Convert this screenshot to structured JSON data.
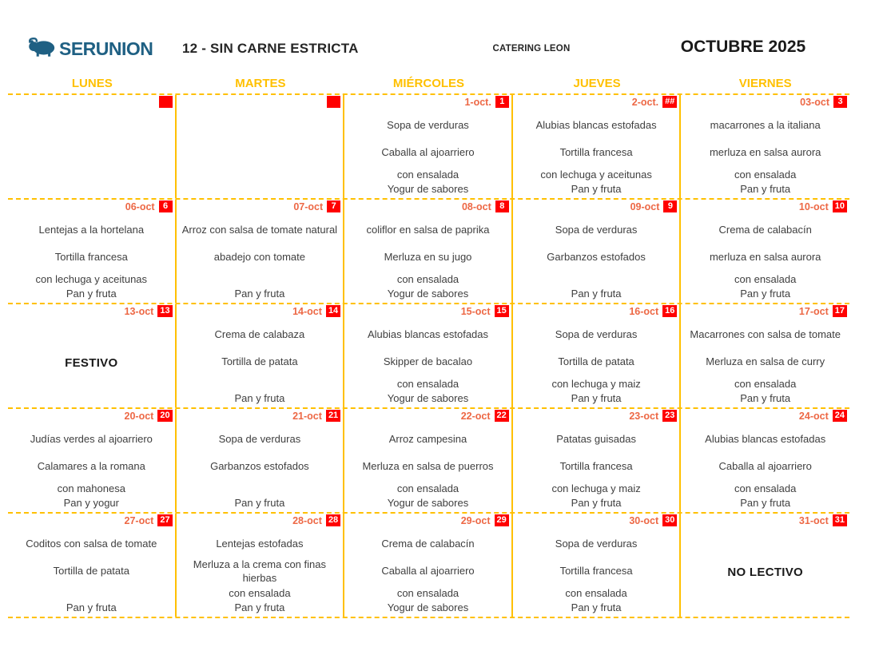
{
  "header": {
    "logo_text": "SERUNION",
    "menu_title": "12 - SIN CARNE ESTRICTA",
    "center_label": "CATERING LEON",
    "month_title": "OCTUBRE 2025"
  },
  "colors": {
    "accent_gold": "#FFC000",
    "date_orange": "#ED6845",
    "badge_red": "#FF0000",
    "logo_blue": "#1F6083",
    "text_dark": "#3F3F3F"
  },
  "weekdays": [
    "LUNES",
    "MARTES",
    "MIÉRCOLES",
    "JUEVES",
    "VIERNES"
  ],
  "weeks": [
    {
      "days": [
        {
          "date": "",
          "badge": "",
          "special": "",
          "lines": [
            "",
            "",
            "",
            ""
          ]
        },
        {
          "date": "",
          "badge": "",
          "special": "",
          "lines": [
            "",
            "",
            "",
            ""
          ]
        },
        {
          "date": "1-oct.",
          "badge": "1",
          "special": "",
          "lines": [
            "Sopa de verduras",
            "Caballa al ajoarriero",
            "con ensalada",
            "Yogur de sabores"
          ]
        },
        {
          "date": "2-oct.",
          "badge": "##",
          "special": "",
          "lines": [
            "Alubias blancas estofadas",
            "Tortilla francesa",
            "con lechuga y aceitunas",
            "Pan y fruta"
          ]
        },
        {
          "date": "03-oct",
          "badge": "3",
          "special": "",
          "lines": [
            "macarrones a la italiana",
            "merluza en salsa aurora",
            "con ensalada",
            "Pan y fruta"
          ]
        }
      ]
    },
    {
      "days": [
        {
          "date": "06-oct",
          "badge": "6",
          "special": "",
          "lines": [
            "Lentejas a la hortelana",
            "Tortilla francesa",
            "con lechuga y aceitunas",
            "Pan y fruta"
          ]
        },
        {
          "date": "07-oct",
          "badge": "7",
          "special": "",
          "lines": [
            "Arroz con salsa de tomate natural",
            "abadejo con tomate",
            "",
            "Pan y fruta"
          ]
        },
        {
          "date": "08-oct",
          "badge": "8",
          "special": "",
          "lines": [
            "coliflor en salsa de paprika",
            "Merluza en su jugo",
            "con ensalada",
            "Yogur de sabores"
          ]
        },
        {
          "date": "09-oct",
          "badge": "9",
          "special": "",
          "lines": [
            "Sopa de verduras",
            "Garbanzos estofados",
            "",
            "Pan y fruta"
          ]
        },
        {
          "date": "10-oct",
          "badge": "10",
          "special": "",
          "lines": [
            "Crema de calabacín",
            "merluza en salsa aurora",
            "con ensalada",
            "Pan y fruta"
          ]
        }
      ]
    },
    {
      "days": [
        {
          "date": "13-oct",
          "badge": "13",
          "special": "FESTIVO",
          "lines": [
            "",
            "",
            "",
            ""
          ]
        },
        {
          "date": "14-oct",
          "badge": "14",
          "special": "",
          "lines": [
            "Crema de calabaza",
            "Tortilla de patata",
            "",
            "Pan y fruta"
          ]
        },
        {
          "date": "15-oct",
          "badge": "15",
          "special": "",
          "lines": [
            "Alubias blancas estofadas",
            "Skipper de bacalao",
            "con ensalada",
            "Yogur de sabores"
          ]
        },
        {
          "date": "16-oct",
          "badge": "16",
          "special": "",
          "lines": [
            "Sopa de verduras",
            "Tortilla de patata",
            "con lechuga y maiz",
            "Pan y fruta"
          ]
        },
        {
          "date": "17-oct",
          "badge": "17",
          "special": "",
          "lines": [
            "Macarrones con salsa de tomate",
            "Merluza en salsa de curry",
            "con ensalada",
            "Pan y fruta"
          ]
        }
      ]
    },
    {
      "days": [
        {
          "date": "20-oct",
          "badge": "20",
          "special": "",
          "lines": [
            "Judías verdes al ajoarriero",
            "Calamares a la romana",
            "con mahonesa",
            "Pan y yogur"
          ]
        },
        {
          "date": "21-oct",
          "badge": "21",
          "special": "",
          "lines": [
            "Sopa de verduras",
            "Garbanzos estofados",
            "",
            "Pan y fruta"
          ]
        },
        {
          "date": "22-oct",
          "badge": "22",
          "special": "",
          "lines": [
            "Arroz campesina",
            "Merluza en salsa de puerros",
            "con ensalada",
            "Yogur de sabores"
          ]
        },
        {
          "date": "23-oct",
          "badge": "23",
          "special": "",
          "lines": [
            "Patatas guisadas",
            "Tortilla francesa",
            "con lechuga y maiz",
            "Pan y fruta"
          ]
        },
        {
          "date": "24-oct",
          "badge": "24",
          "special": "",
          "lines": [
            "Alubias blancas estofadas",
            "Caballa al ajoarriero",
            "con ensalada",
            "Pan y fruta"
          ]
        }
      ]
    },
    {
      "days": [
        {
          "date": "27-oct",
          "badge": "27",
          "special": "",
          "lines": [
            "Coditos con salsa de tomate",
            "Tortilla de patata",
            "",
            "Pan y fruta"
          ]
        },
        {
          "date": "28-oct",
          "badge": "28",
          "special": "",
          "lines": [
            "Lentejas estofadas",
            "Merluza a la crema con finas hierbas",
            "con ensalada",
            "Pan y fruta"
          ]
        },
        {
          "date": "29-oct",
          "badge": "29",
          "special": "",
          "lines": [
            "Crema de calabacín",
            "Caballa al ajoarriero",
            "con ensalada",
            "Yogur de sabores"
          ]
        },
        {
          "date": "30-oct",
          "badge": "30",
          "special": "",
          "lines": [
            "Sopa de verduras",
            "Tortilla francesa",
            "con ensalada",
            "Pan y fruta"
          ]
        },
        {
          "date": "31-oct",
          "badge": "31",
          "special": "NO LECTIVO",
          "lines": [
            "",
            "",
            "",
            ""
          ]
        }
      ]
    }
  ]
}
